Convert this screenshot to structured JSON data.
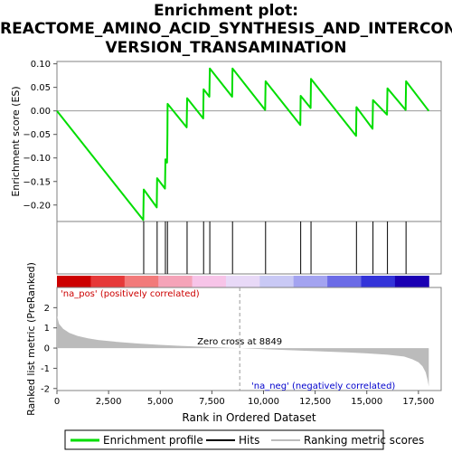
{
  "chart_data": {
    "type": "line",
    "title_lines": [
      "Enrichment plot:",
      "REACTOME_AMINO_ACID_SYNTHESIS_AND_INTERCON",
      "VERSION_TRANSAMINATION"
    ],
    "es_panel": {
      "ylabel": "Enrichment score (ES)",
      "yticks": [
        -0.2,
        -0.15,
        -0.1,
        -0.05,
        0.0,
        0.05,
        0.1
      ],
      "ytick_labels": [
        "−0.20",
        "−0.15",
        "−0.10",
        "−0.05",
        "0.00",
        "0.05",
        "0.10"
      ],
      "ylim": [
        -0.235,
        0.105
      ],
      "series_color": "#00dd00"
    },
    "xlim": [
      0,
      18600
    ],
    "xticks": [
      0,
      2500,
      5000,
      7500,
      10000,
      12500,
      15000,
      17500
    ],
    "xtick_labels": [
      "0",
      "2,500",
      "5,000",
      "7,500",
      "10,000",
      "12,500",
      "15,000",
      "17,500"
    ],
    "xlabel": "Rank in Ordered Dataset",
    "n_genes": 18000,
    "hits": [
      4200,
      4850,
      5250,
      5350,
      6300,
      7100,
      7400,
      8500,
      10100,
      11800,
      12300,
      14500,
      15300,
      16000,
      16900
    ],
    "enrichment_profile": [
      [
        0,
        0.0
      ],
      [
        4180,
        -0.232
      ],
      [
        4200,
        -0.167
      ],
      [
        4830,
        -0.205
      ],
      [
        4850,
        -0.143
      ],
      [
        5230,
        -0.165
      ],
      [
        5250,
        -0.103
      ],
      [
        5330,
        -0.11
      ],
      [
        5350,
        -0.05
      ],
      [
        5355,
        0.015
      ],
      [
        6280,
        -0.035
      ],
      [
        6300,
        0.027
      ],
      [
        7080,
        -0.016
      ],
      [
        7100,
        0.046
      ],
      [
        7380,
        0.03
      ],
      [
        7400,
        0.09
      ],
      [
        8480,
        0.03
      ],
      [
        8500,
        0.09
      ],
      [
        10080,
        0.002
      ],
      [
        10100,
        0.063
      ],
      [
        11780,
        -0.03
      ],
      [
        11800,
        0.032
      ],
      [
        12280,
        0.006
      ],
      [
        12300,
        0.068
      ],
      [
        14480,
        -0.053
      ],
      [
        14500,
        0.008
      ],
      [
        15280,
        -0.038
      ],
      [
        15300,
        0.023
      ],
      [
        15980,
        -0.008
      ],
      [
        16000,
        0.048
      ],
      [
        16880,
        0.002
      ],
      [
        16900,
        0.063
      ],
      [
        18000,
        0.0
      ]
    ],
    "rank_panel": {
      "ylabel": "Ranked list metric (PreRanked)",
      "yticks": [
        -2,
        -1,
        0,
        1,
        2
      ],
      "ylim": [
        -2.1,
        3.0
      ],
      "zero_cross": 8849,
      "zero_cross_label": "Zero cross at 8849",
      "pos_label": "'na_pos' (positively correlated)",
      "neg_label": "'na_neg' (negatively correlated)",
      "metric_curve": [
        [
          0,
          1.6
        ],
        [
          100,
          1.2
        ],
        [
          300,
          0.95
        ],
        [
          600,
          0.75
        ],
        [
          1000,
          0.6
        ],
        [
          1500,
          0.48
        ],
        [
          2000,
          0.4
        ],
        [
          3000,
          0.3
        ],
        [
          4000,
          0.22
        ],
        [
          5000,
          0.16
        ],
        [
          6000,
          0.11
        ],
        [
          7000,
          0.07
        ],
        [
          8000,
          0.03
        ],
        [
          8849,
          0.0
        ],
        [
          10000,
          -0.05
        ],
        [
          11000,
          -0.09
        ],
        [
          12000,
          -0.13
        ],
        [
          13000,
          -0.17
        ],
        [
          14000,
          -0.21
        ],
        [
          15000,
          -0.26
        ],
        [
          16000,
          -0.33
        ],
        [
          16800,
          -0.42
        ],
        [
          17200,
          -0.55
        ],
        [
          17500,
          -0.7
        ],
        [
          17700,
          -0.9
        ],
        [
          17850,
          -1.2
        ],
        [
          17950,
          -1.6
        ],
        [
          18000,
          -1.9
        ]
      ]
    },
    "colorbar_stops": [
      "#cc0000",
      "#e63939",
      "#f27a7a",
      "#f5a3b8",
      "#f7c4e8",
      "#e8d9f7",
      "#c9c9f5",
      "#a3a3f0",
      "#6b6be6",
      "#3333d9",
      "#1a00b3"
    ],
    "legend": {
      "items": [
        {
          "label": "Enrichment profile",
          "color": "#00dd00"
        },
        {
          "label": "Hits",
          "color": "#000000"
        },
        {
          "label": "Ranking metric scores",
          "color": "#bbbbbb"
        }
      ]
    }
  }
}
